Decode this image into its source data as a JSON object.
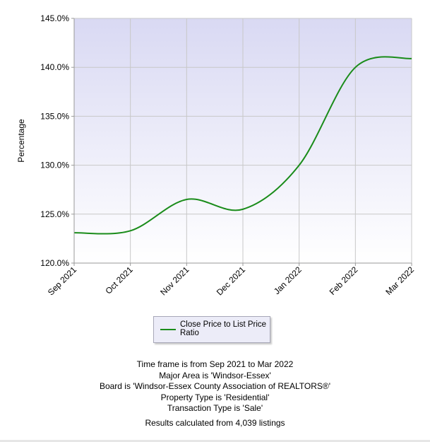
{
  "chart_data": {
    "type": "line",
    "title": "",
    "xlabel": "",
    "ylabel": "Percentage",
    "categories": [
      "Sep 2021",
      "Oct 2021",
      "Nov 2021",
      "Dec 2021",
      "Jan 2022",
      "Feb 2022",
      "Mar 2022"
    ],
    "y_ticks": [
      "120.0%",
      "125.0%",
      "130.0%",
      "135.0%",
      "140.0%",
      "145.0%"
    ],
    "ylim": [
      120,
      145
    ],
    "grid": true,
    "legend_position": "bottom",
    "series": [
      {
        "name": "Close Price to List Price Ratio",
        "color": "#1a8c1a",
        "values": [
          123.1,
          123.3,
          126.5,
          125.5,
          130.0,
          140.0,
          140.9
        ]
      }
    ]
  },
  "info": {
    "timeframe": "Time frame is from Sep 2021 to Mar 2022",
    "major_area": "Major Area is 'Windsor-Essex'",
    "board": "Board is 'Windsor-Essex County Association of REALTORS®'",
    "property_type": "Property Type is 'Residential'",
    "transaction_type": "Transaction Type is 'Sale'",
    "results": "Results calculated from 4,039 listings"
  },
  "colors": {
    "plot_top": "#d9d9f3",
    "plot_bottom": "#ffffff",
    "grid": "#c8c8c8"
  }
}
